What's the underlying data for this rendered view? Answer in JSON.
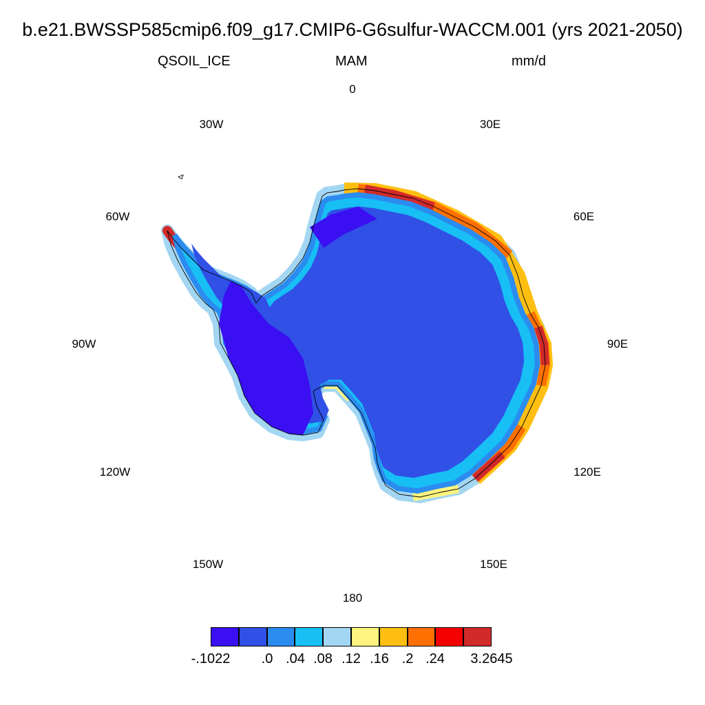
{
  "header": {
    "title": "b.e21.BWSSP585cmip6.f09_g17.CMIP6-G6sulfur-WACCM.001 (yrs 2021-2050)",
    "variable": "QSOIL_ICE",
    "season": "MAM",
    "units": "mm/d"
  },
  "map": {
    "projection": "south-polar-stereographic",
    "lon_labels": [
      "0",
      "30E",
      "60E",
      "90E",
      "120E",
      "150E",
      "180",
      "150W",
      "120W",
      "90W",
      "60W",
      "30W"
    ],
    "colors": {
      "interior": "#3050E6",
      "west_ant": "#3A0FF2",
      "coast_inner": "#2B8CF0",
      "coast_light": "#17BFF5",
      "pale": "#A3D6F2",
      "yellow": "#FFF47F",
      "gold": "#FFBF12",
      "orange": "#FF7000",
      "red": "#F50000",
      "darkred": "#D22A2A"
    }
  },
  "colorbar": {
    "colors": [
      "#3A0FF2",
      "#3050E6",
      "#2B8CF0",
      "#17BFF5",
      "#A3D6F2",
      "#FFF47F",
      "#FFBF12",
      "#FF7000",
      "#F50000",
      "#D22A2A"
    ],
    "labels": [
      "-.1022",
      ".0",
      ".04",
      ".08",
      ".12",
      ".16",
      ".2",
      ".24",
      "3.2645"
    ]
  }
}
